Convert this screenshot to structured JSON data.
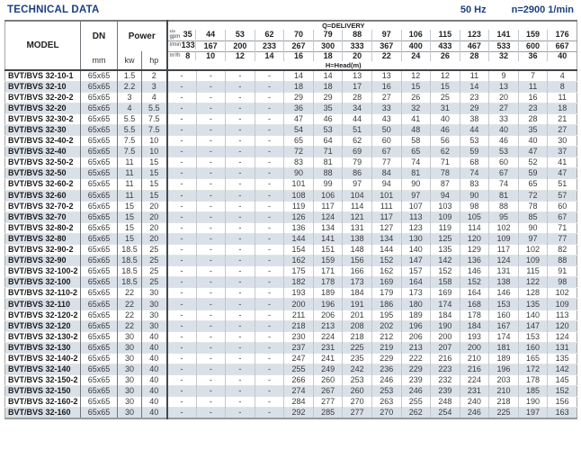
{
  "page": {
    "title": "TECHNICAL DATA",
    "frequency": "50 Hz",
    "speed": "n=2900 1/min"
  },
  "colors": {
    "accent": "#1b4080",
    "row_shade": "#d9e0e8"
  },
  "table": {
    "model_label": "MODEL",
    "dn_label": "DN",
    "dn_unit": "mm",
    "power_label": "Power",
    "kw_label": "kw",
    "hp_label": "hp",
    "delivery_label": "Q=DELIVERY",
    "head_label": "H=Head(m)",
    "units": {
      "gpm_line1": "us",
      "gpm_line2": "gpm",
      "lmin": "l/min",
      "m3h": "m³/h"
    },
    "delivery": {
      "us_gpm": [
        "35",
        "44",
        "53",
        "62",
        "70",
        "79",
        "88",
        "97",
        "106",
        "115",
        "123",
        "141",
        "159",
        "176"
      ],
      "l_min": [
        "133",
        "167",
        "200",
        "233",
        "267",
        "300",
        "333",
        "367",
        "400",
        "433",
        "467",
        "533",
        "600",
        "667"
      ],
      "m3_h": [
        "8",
        "10",
        "12",
        "14",
        "16",
        "18",
        "20",
        "22",
        "24",
        "26",
        "28",
        "32",
        "36",
        "40"
      ]
    },
    "rows": [
      {
        "model": "BVT/BVS 32-10-1",
        "dn": "65x65",
        "kw": "1.5",
        "hp": "2",
        "head": [
          "-",
          "-",
          "-",
          "-",
          "14",
          "14",
          "13",
          "13",
          "12",
          "12",
          "11",
          "9",
          "7",
          "4"
        ]
      },
      {
        "model": "BVT/BVS 32-10",
        "dn": "65x65",
        "kw": "2.2",
        "hp": "3",
        "head": [
          "-",
          "-",
          "-",
          "-",
          "18",
          "18",
          "17",
          "16",
          "15",
          "15",
          "14",
          "13",
          "11",
          "8"
        ]
      },
      {
        "model": "BVT/BVS 32-20-2",
        "dn": "65x65",
        "kw": "3",
        "hp": "4",
        "head": [
          "-",
          "-",
          "-",
          "-",
          "29",
          "29",
          "28",
          "27",
          "26",
          "25",
          "23",
          "20",
          "16",
          "11"
        ]
      },
      {
        "model": "BVT/BVS 32-20",
        "dn": "65x65",
        "kw": "4",
        "hp": "5.5",
        "head": [
          "-",
          "-",
          "-",
          "-",
          "36",
          "35",
          "34",
          "33",
          "32",
          "31",
          "29",
          "27",
          "23",
          "18"
        ]
      },
      {
        "model": "BVT/BVS 32-30-2",
        "dn": "65x65",
        "kw": "5.5",
        "hp": "7.5",
        "head": [
          "-",
          "-",
          "-",
          "-",
          "47",
          "46",
          "44",
          "43",
          "41",
          "40",
          "38",
          "33",
          "28",
          "21"
        ]
      },
      {
        "model": "BVT/BVS 32-30",
        "dn": "65x65",
        "kw": "5.5",
        "hp": "7.5",
        "head": [
          "-",
          "-",
          "-",
          "-",
          "54",
          "53",
          "51",
          "50",
          "48",
          "46",
          "44",
          "40",
          "35",
          "27"
        ]
      },
      {
        "model": "BVT/BVS 32-40-2",
        "dn": "65x65",
        "kw": "7.5",
        "hp": "10",
        "head": [
          "-",
          "-",
          "-",
          "-",
          "65",
          "64",
          "62",
          "60",
          "58",
          "56",
          "53",
          "46",
          "40",
          "30"
        ]
      },
      {
        "model": "BVT/BVS 32-40",
        "dn": "65x65",
        "kw": "7.5",
        "hp": "10",
        "head": [
          "-",
          "-",
          "-",
          "-",
          "72",
          "71",
          "69",
          "67",
          "65",
          "62",
          "59",
          "53",
          "47",
          "37"
        ]
      },
      {
        "model": "BVT/BVS 32-50-2",
        "dn": "65x65",
        "kw": "11",
        "hp": "15",
        "head": [
          "-",
          "-",
          "-",
          "-",
          "83",
          "81",
          "79",
          "77",
          "74",
          "71",
          "68",
          "60",
          "52",
          "41"
        ]
      },
      {
        "model": "BVT/BVS 32-50",
        "dn": "65x65",
        "kw": "11",
        "hp": "15",
        "head": [
          "-",
          "-",
          "-",
          "-",
          "90",
          "88",
          "86",
          "84",
          "81",
          "78",
          "74",
          "67",
          "59",
          "47"
        ]
      },
      {
        "model": "BVT/BVS 32-60-2",
        "dn": "65x65",
        "kw": "11",
        "hp": "15",
        "head": [
          "-",
          "-",
          "-",
          "-",
          "101",
          "99",
          "97",
          "94",
          "90",
          "87",
          "83",
          "74",
          "65",
          "51"
        ]
      },
      {
        "model": "BVT/BVS 32-60",
        "dn": "65x65",
        "kw": "11",
        "hp": "15",
        "head": [
          "-",
          "-",
          "-",
          "-",
          "108",
          "106",
          "104",
          "101",
          "97",
          "94",
          "90",
          "81",
          "72",
          "57"
        ]
      },
      {
        "model": "BVT/BVS 32-70-2",
        "dn": "65x65",
        "kw": "15",
        "hp": "20",
        "head": [
          "-",
          "-",
          "-",
          "-",
          "119",
          "117",
          "114",
          "111",
          "107",
          "103",
          "98",
          "88",
          "78",
          "60"
        ]
      },
      {
        "model": "BVT/BVS 32-70",
        "dn": "65x65",
        "kw": "15",
        "hp": "20",
        "head": [
          "-",
          "-",
          "-",
          "-",
          "126",
          "124",
          "121",
          "117",
          "113",
          "109",
          "105",
          "95",
          "85",
          "67"
        ]
      },
      {
        "model": "BVT/BVS 32-80-2",
        "dn": "65x65",
        "kw": "15",
        "hp": "20",
        "head": [
          "-",
          "-",
          "-",
          "-",
          "136",
          "134",
          "131",
          "127",
          "123",
          "119",
          "114",
          "102",
          "90",
          "71"
        ]
      },
      {
        "model": "BVT/BVS 32-80",
        "dn": "65x65",
        "kw": "15",
        "hp": "20",
        "head": [
          "-",
          "-",
          "-",
          "-",
          "144",
          "141",
          "138",
          "134",
          "130",
          "125",
          "120",
          "109",
          "97",
          "77"
        ]
      },
      {
        "model": "BVT/BVS 32-90-2",
        "dn": "65x65",
        "kw": "18.5",
        "hp": "25",
        "head": [
          "-",
          "-",
          "-",
          "-",
          "154",
          "151",
          "148",
          "144",
          "140",
          "135",
          "129",
          "117",
          "102",
          "82"
        ]
      },
      {
        "model": "BVT/BVS 32-90",
        "dn": "65x65",
        "kw": "18.5",
        "hp": "25",
        "head": [
          "-",
          "-",
          "-",
          "-",
          "162",
          "159",
          "156",
          "152",
          "147",
          "142",
          "136",
          "124",
          "109",
          "88"
        ]
      },
      {
        "model": "BVT/BVS 32-100-2",
        "dn": "65x65",
        "kw": "18.5",
        "hp": "25",
        "head": [
          "-",
          "-",
          "-",
          "-",
          "175",
          "171",
          "166",
          "162",
          "157",
          "152",
          "146",
          "131",
          "115",
          "91"
        ]
      },
      {
        "model": "BVT/BVS 32-100",
        "dn": "65x65",
        "kw": "18.5",
        "hp": "25",
        "head": [
          "-",
          "-",
          "-",
          "-",
          "182",
          "178",
          "173",
          "169",
          "164",
          "158",
          "152",
          "138",
          "122",
          "98"
        ]
      },
      {
        "model": "BVT/BVS 32-110-2",
        "dn": "65x65",
        "kw": "22",
        "hp": "30",
        "head": [
          "-",
          "-",
          "-",
          "-",
          "193",
          "189",
          "184",
          "179",
          "173",
          "169",
          "164",
          "146",
          "128",
          "102"
        ]
      },
      {
        "model": "BVT/BVS 32-110",
        "dn": "65x65",
        "kw": "22",
        "hp": "30",
        "head": [
          "-",
          "-",
          "-",
          "-",
          "200",
          "196",
          "191",
          "186",
          "180",
          "174",
          "168",
          "153",
          "135",
          "109"
        ]
      },
      {
        "model": "BVT/BVS 32-120-2",
        "dn": "65x65",
        "kw": "22",
        "hp": "30",
        "head": [
          "-",
          "-",
          "-",
          "-",
          "211",
          "206",
          "201",
          "195",
          "189",
          "184",
          "178",
          "160",
          "140",
          "113"
        ]
      },
      {
        "model": "BVT/BVS 32-120",
        "dn": "65x65",
        "kw": "22",
        "hp": "30",
        "head": [
          "-",
          "-",
          "-",
          "-",
          "218",
          "213",
          "208",
          "202",
          "196",
          "190",
          "184",
          "167",
          "147",
          "120"
        ]
      },
      {
        "model": "BVT/BVS 32-130-2",
        "dn": "65x65",
        "kw": "30",
        "hp": "40",
        "head": [
          "-",
          "-",
          "-",
          "-",
          "230",
          "224",
          "218",
          "212",
          "206",
          "200",
          "193",
          "174",
          "153",
          "124"
        ]
      },
      {
        "model": "BVT/BVS 32-130",
        "dn": "65x65",
        "kw": "30",
        "hp": "40",
        "head": [
          "-",
          "-",
          "-",
          "-",
          "237",
          "231",
          "225",
          "219",
          "213",
          "207",
          "200",
          "181",
          "160",
          "131"
        ]
      },
      {
        "model": "BVT/BVS 32-140-2",
        "dn": "65x65",
        "kw": "30",
        "hp": "40",
        "head": [
          "-",
          "-",
          "-",
          "-",
          "247",
          "241",
          "235",
          "229",
          "222",
          "216",
          "210",
          "189",
          "165",
          "135"
        ]
      },
      {
        "model": "BVT/BVS 32-140",
        "dn": "65x65",
        "kw": "30",
        "hp": "40",
        "head": [
          "-",
          "-",
          "-",
          "-",
          "255",
          "249",
          "242",
          "236",
          "229",
          "223",
          "216",
          "196",
          "172",
          "142"
        ]
      },
      {
        "model": "BVT/BVS 32-150-2",
        "dn": "65x65",
        "kw": "30",
        "hp": "40",
        "head": [
          "-",
          "-",
          "-",
          "-",
          "266",
          "260",
          "253",
          "246",
          "239",
          "232",
          "224",
          "203",
          "178",
          "145"
        ]
      },
      {
        "model": "BVT/BVS 32-150",
        "dn": "65x65",
        "kw": "30",
        "hp": "40",
        "head": [
          "-",
          "-",
          "-",
          "-",
          "274",
          "267",
          "260",
          "253",
          "246",
          "239",
          "231",
          "210",
          "185",
          "152"
        ]
      },
      {
        "model": "BVT/BVS 32-160-2",
        "dn": "65x65",
        "kw": "30",
        "hp": "40",
        "head": [
          "-",
          "-",
          "-",
          "-",
          "284",
          "277",
          "270",
          "263",
          "255",
          "248",
          "240",
          "218",
          "190",
          "156"
        ]
      },
      {
        "model": "BVT/BVS 32-160",
        "dn": "65x65",
        "kw": "30",
        "hp": "40",
        "head": [
          "-",
          "-",
          "-",
          "-",
          "292",
          "285",
          "277",
          "270",
          "262",
          "254",
          "246",
          "225",
          "197",
          "163"
        ]
      }
    ]
  }
}
